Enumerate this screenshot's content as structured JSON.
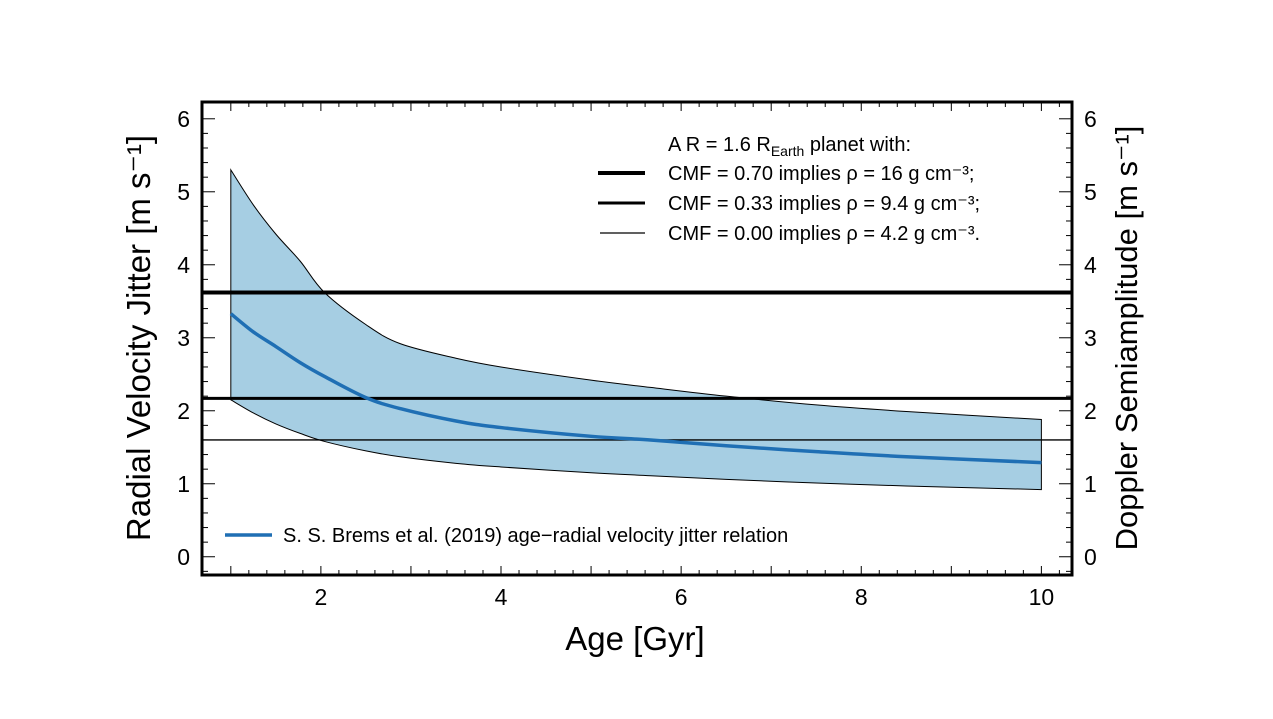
{
  "chart_data": {
    "type": "line",
    "xlabel": "Age  [Gyr]",
    "ylabel": "Radial Velocity Jitter  [m s⁻¹]",
    "ylabel_right": "Doppler Semiamplitude  [m s⁻¹]",
    "xlim": [
      0.68,
      10.34
    ],
    "ylim": [
      -0.25,
      6.23
    ],
    "xticks": [
      2,
      4,
      6,
      8,
      10
    ],
    "yticks": [
      0,
      1,
      2,
      3,
      4,
      5,
      6
    ],
    "grid": false,
    "colors": {
      "band": "#a6cee3",
      "relation": "#1f6fb4",
      "lines": "#000000"
    },
    "relation": {
      "name": "S. S. Brems et al. (2019) age−radial velocity jitter relation",
      "x": [
        1.0,
        1.25,
        1.5,
        1.77,
        2.04,
        2.5,
        2.88,
        3.5,
        4.0,
        5.0,
        5.66,
        6.5,
        7.5,
        8.5,
        10.0
      ],
      "y": [
        3.33,
        3.08,
        2.88,
        2.66,
        2.47,
        2.18,
        2.03,
        1.86,
        1.77,
        1.65,
        1.6,
        1.52,
        1.44,
        1.37,
        1.29
      ]
    },
    "band": {
      "x": [
        1.0,
        1.25,
        1.5,
        1.77,
        2.04,
        2.5,
        2.88,
        3.5,
        4.0,
        5.0,
        5.66,
        6.5,
        7.5,
        8.5,
        10.0
      ],
      "upper": [
        5.3,
        4.82,
        4.42,
        4.05,
        3.62,
        3.18,
        2.92,
        2.72,
        2.6,
        2.42,
        2.32,
        2.2,
        2.08,
        1.99,
        1.88
      ],
      "lower": [
        2.15,
        1.97,
        1.82,
        1.69,
        1.58,
        1.45,
        1.37,
        1.28,
        1.23,
        1.15,
        1.11,
        1.06,
        1.01,
        0.97,
        0.92
      ]
    },
    "hlines": [
      {
        "label": "CMF = 0.70 implies ρ = 16 g cm⁻³;",
        "y": 3.62,
        "weight": "thick"
      },
      {
        "label": "CMF = 0.33 implies ρ = 9.4 g cm⁻³;",
        "y": 2.17,
        "weight": "medium"
      },
      {
        "label": "CMF = 0.00 implies ρ = 4.2 g cm⁻³.",
        "y": 1.6,
        "weight": "thin"
      }
    ],
    "legend_title": {
      "prefix": "A R = 1.6 R",
      "sub": "Earth",
      "suffix": " planet with:"
    },
    "legend_placement": "top-right"
  }
}
